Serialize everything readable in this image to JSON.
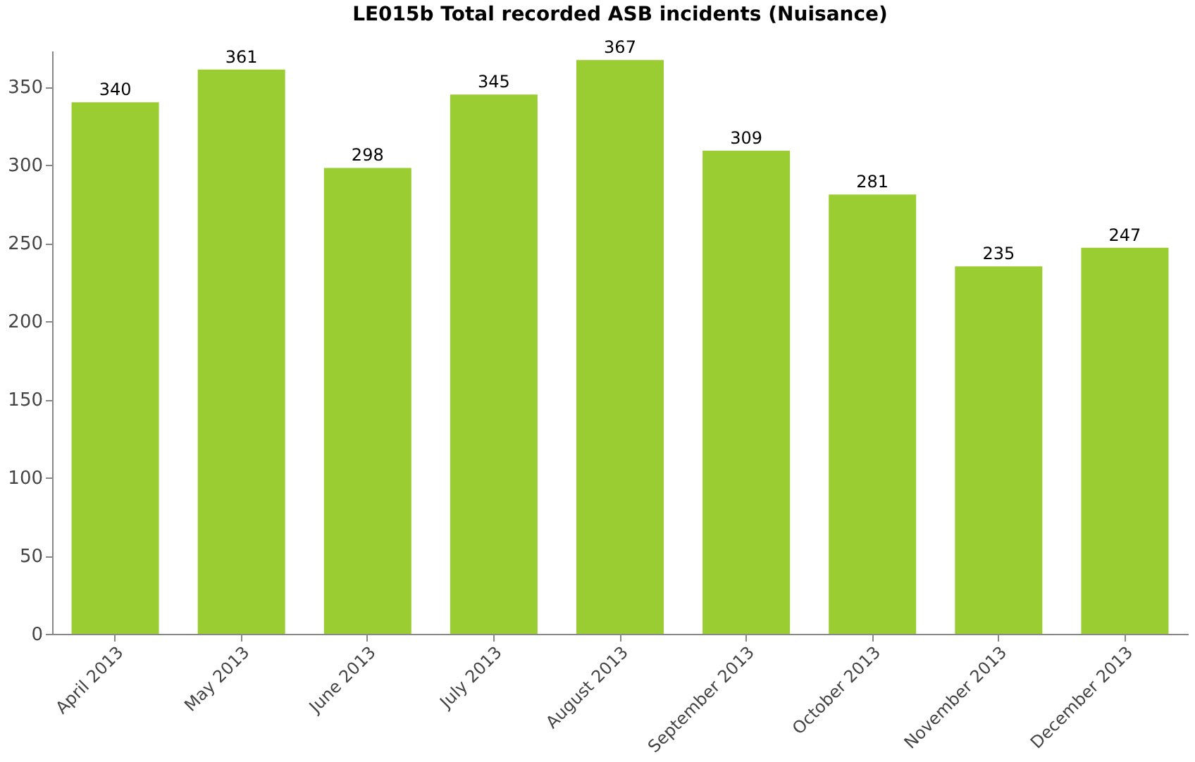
{
  "chart_data": {
    "type": "bar",
    "title": "LE015b Total recorded ASB incidents (Nuisance)",
    "categories": [
      "April 2013",
      "May 2013",
      "June 2013",
      "July 2013",
      "August 2013",
      "September 2013",
      "October 2013",
      "November 2013",
      "December 2013"
    ],
    "values": [
      340,
      361,
      298,
      345,
      367,
      309,
      281,
      235,
      247
    ],
    "color": "#9acd32",
    "ylim": [
      0,
      373
    ],
    "yticks": [
      0,
      50,
      100,
      150,
      200,
      250,
      300,
      350
    ],
    "grid": false,
    "data_labels": true
  }
}
